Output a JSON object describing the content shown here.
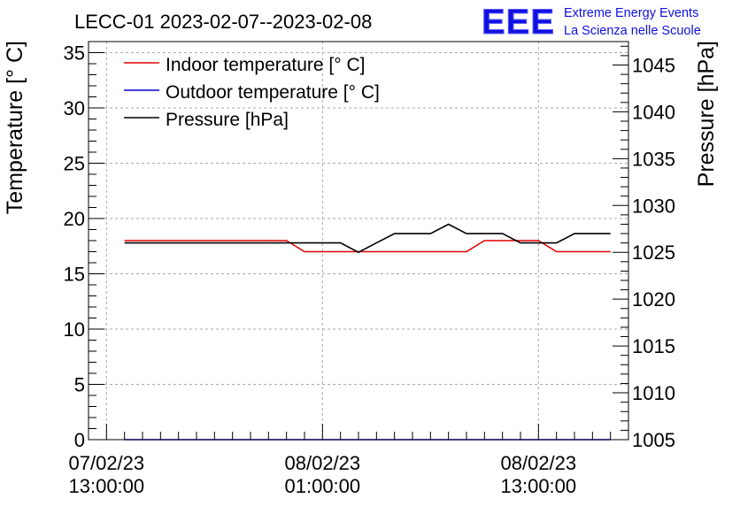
{
  "chart_data": {
    "type": "line",
    "title": "LECC-01 2023-02-07--2023-02-08",
    "ylabel": "Temperature [° C]",
    "y2label": "Pressure [hPa]",
    "ylim": [
      0,
      36
    ],
    "y2lim": [
      1005,
      1047.5
    ],
    "yticks": [
      "0",
      "5",
      "10",
      "15",
      "20",
      "25",
      "30",
      "35"
    ],
    "y2ticks": [
      "1005",
      "1010",
      "1015",
      "1020",
      "1025",
      "1030",
      "1035",
      "1040",
      "1045"
    ],
    "xlim": [
      "2023-02-07 12:00",
      "2023-02-08 18:00"
    ],
    "xticks": [
      {
        "x": "2023-02-07 13:00",
        "line1": "07/02/23",
        "line2": "13:00:00"
      },
      {
        "x": "2023-02-08 01:00",
        "line1": "08/02/23",
        "line2": "01:00:00"
      },
      {
        "x": "2023-02-08 13:00",
        "line1": "08/02/23",
        "line2": "13:00:00"
      }
    ],
    "grid": true,
    "legend_position": "top-left",
    "x": [
      "2023-02-07 14:00",
      "2023-02-07 15:00",
      "2023-02-07 16:00",
      "2023-02-07 17:00",
      "2023-02-07 18:00",
      "2023-02-07 19:00",
      "2023-02-07 20:00",
      "2023-02-07 21:00",
      "2023-02-07 22:00",
      "2023-02-07 23:00",
      "2023-02-08 00:00",
      "2023-02-08 01:00",
      "2023-02-08 02:00",
      "2023-02-08 03:00",
      "2023-02-08 04:00",
      "2023-02-08 05:00",
      "2023-02-08 06:00",
      "2023-02-08 07:00",
      "2023-02-08 08:00",
      "2023-02-08 09:00",
      "2023-02-08 10:00",
      "2023-02-08 11:00",
      "2023-02-08 12:00",
      "2023-02-08 13:00",
      "2023-02-08 14:00",
      "2023-02-08 15:00",
      "2023-02-08 16:00",
      "2023-02-08 17:00"
    ],
    "series": [
      {
        "name": "Indoor temperature [° C]",
        "axis": "left",
        "color": "#e00000",
        "values": [
          18,
          18,
          18,
          18,
          18,
          18,
          18,
          18,
          18,
          18,
          17,
          17,
          17,
          17,
          17,
          17,
          17,
          17,
          17,
          17,
          18,
          18,
          18,
          18,
          17,
          17,
          17,
          17
        ]
      },
      {
        "name": "Outdoor temperature [° C]",
        "axis": "left",
        "color": "#0000e0",
        "values": [
          0,
          0,
          0,
          0,
          0,
          0,
          0,
          0,
          0,
          0,
          0,
          0,
          0,
          0,
          0,
          0,
          0,
          0,
          0,
          0,
          0,
          0,
          0,
          0,
          0,
          0,
          0,
          0
        ]
      },
      {
        "name": "Pressure [hPa]",
        "axis": "right",
        "color": "#000000",
        "values": [
          1026,
          1026,
          1026,
          1026,
          1026,
          1026,
          1026,
          1026,
          1026,
          1026,
          1026,
          1026,
          1026,
          1025,
          1026,
          1027,
          1027,
          1027,
          1028,
          1027,
          1027,
          1027,
          1026,
          1026,
          1026,
          1027,
          1027,
          1027
        ]
      }
    ]
  },
  "brand": {
    "logo": "EEE",
    "line1": "Extreme Energy Events",
    "line2": "La Scienza nelle Scuole",
    "color": "#1010e0"
  }
}
